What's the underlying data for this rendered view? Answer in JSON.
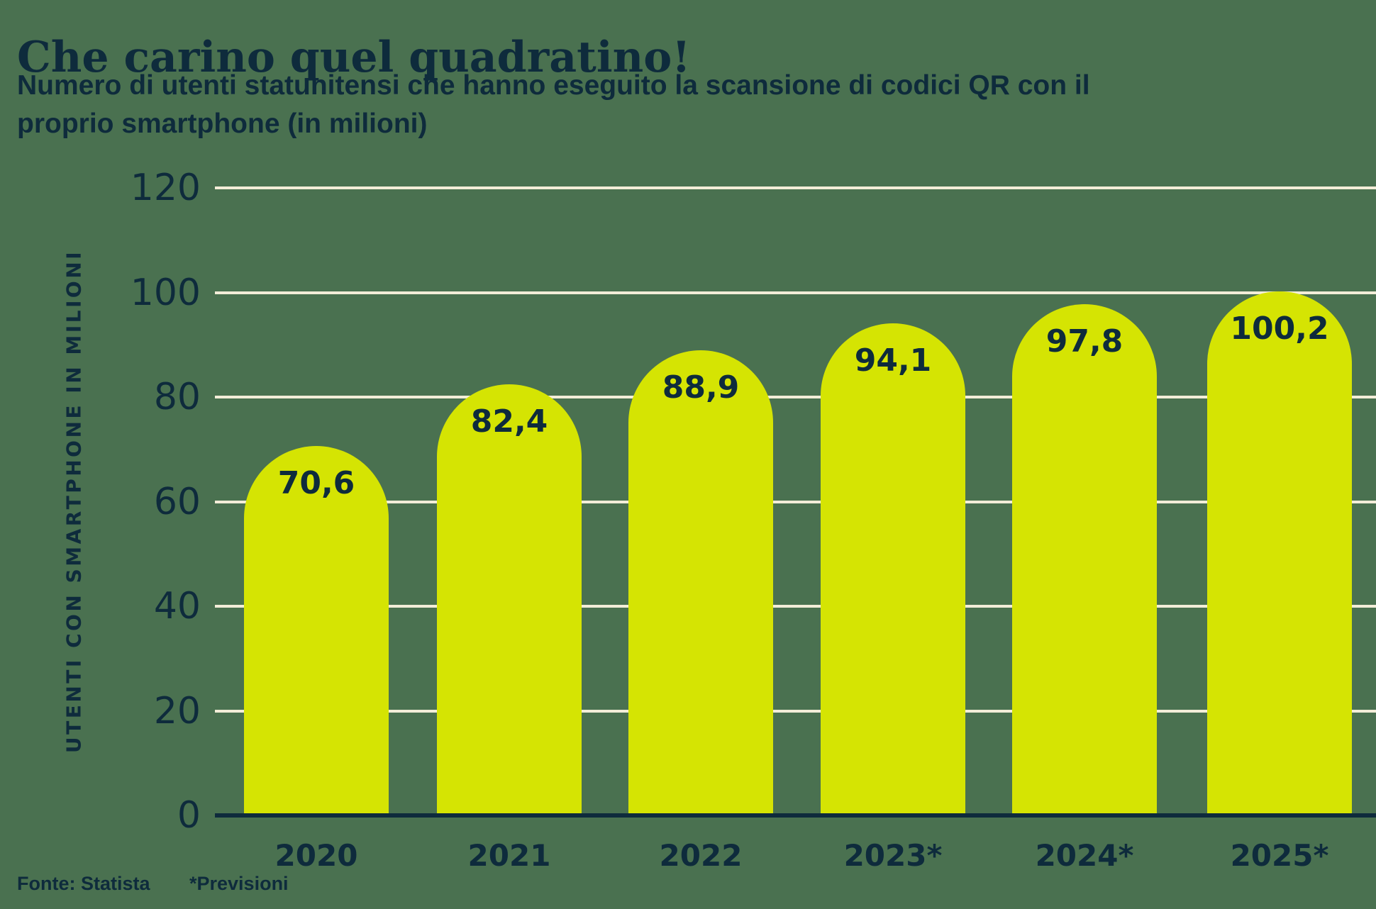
{
  "title": "Che carino quel quadratino!",
  "subtitle": "Numero di utenti statunitensi che hanno eseguito la scansione di codici QR con il proprio smartphone (in milioni)",
  "source": "Fonte: Statista",
  "footnote": "*Previsioni",
  "colors": {
    "background": "#4a7150",
    "bar": "#d5e403",
    "text": "#0e2b3c",
    "gridline": "#f3edd8"
  },
  "chart_data": {
    "type": "bar",
    "categories": [
      "2020",
      "2021",
      "2022",
      "2023*",
      "2024*",
      "2025*"
    ],
    "values": [
      70.6,
      82.4,
      88.9,
      94.1,
      97.8,
      100.2
    ],
    "value_labels": [
      "70,6",
      "82,4",
      "88,9",
      "94,1",
      "97,8",
      "100,2"
    ],
    "title": "Che carino quel quadratino!",
    "xlabel": "",
    "ylabel": "UTENTI CON SMARTPHONE IN MILIONI",
    "ylim": [
      0,
      120
    ],
    "yticks": [
      0,
      20,
      40,
      60,
      80,
      100,
      120
    ],
    "grid": true,
    "legend": false
  }
}
